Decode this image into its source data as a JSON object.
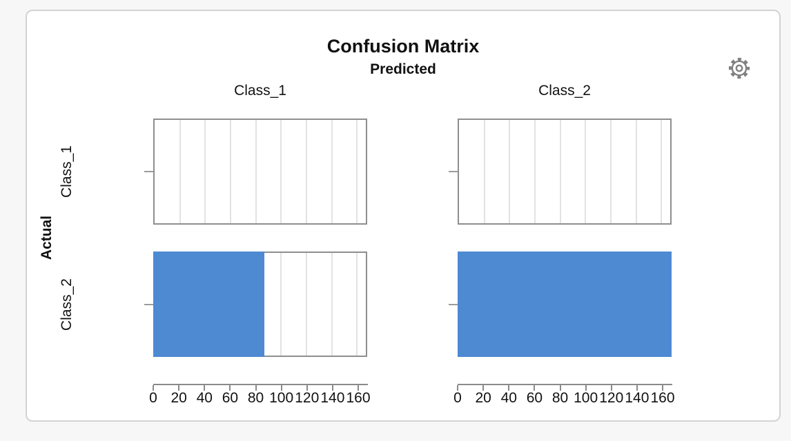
{
  "chart_data": {
    "type": "bar",
    "orientation": "horizontal",
    "title": "Confusion Matrix",
    "top_axis_title": "Predicted",
    "left_axis_title": "Actual",
    "columns": [
      "Class_1",
      "Class_2"
    ],
    "rows": [
      "Class_1",
      "Class_2"
    ],
    "matrix": [
      [
        0,
        0
      ],
      [
        87,
        167
      ]
    ],
    "x_ticks": [
      0,
      20,
      40,
      60,
      80,
      100,
      120,
      140,
      160
    ],
    "x_range": [
      0,
      167
    ],
    "grid": true,
    "legend": "none"
  },
  "icons": {
    "settings": "gear-icon"
  },
  "colors": {
    "bar": "#4d8ad2",
    "panel_border": "#8e8e8e",
    "gridline": "#e2e2e2",
    "axis": "#8a8a8a",
    "text": "#111111",
    "page_background": "#f7f7f7",
    "card_background": "#ffffff",
    "card_border": "#d3d3d3",
    "icon": "#808080"
  }
}
